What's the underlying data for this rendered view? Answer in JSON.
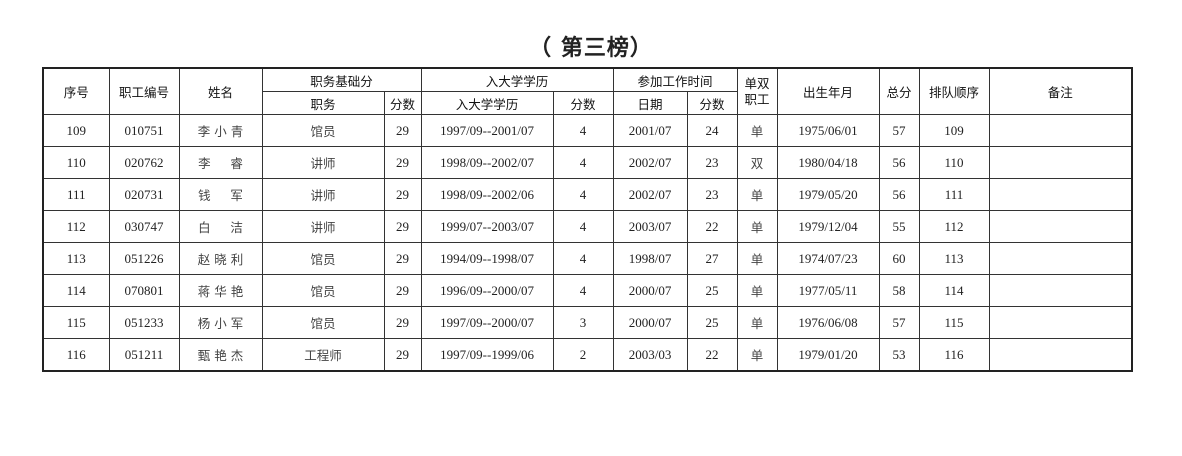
{
  "title": "（ 第三榜）",
  "headers": {
    "seq": "序号",
    "staff_id": "职工编号",
    "name": "姓名",
    "position_group": "职务基础分",
    "position": "职务",
    "position_score": "分数",
    "edu_group": "入大学学历",
    "edu": "入大学学历",
    "edu_score": "分数",
    "work_group": "参加工作时间",
    "work_date": "日期",
    "work_score": "分数",
    "dual_1": "单双",
    "dual_2": "职工",
    "birth": "出生年月",
    "total": "总分",
    "rank": "排队顺序",
    "remark": "备注"
  },
  "rows": [
    {
      "seq": "109",
      "id": "010751",
      "name": "李 小 青",
      "position": "馆员",
      "pscore": "29",
      "edu": "1997/09--2001/07",
      "escore": "4",
      "wdate": "2001/07",
      "wscore": "24",
      "dual": "单",
      "birth": "1975/06/01",
      "total": "57",
      "rank": "109",
      "remark": ""
    },
    {
      "seq": "110",
      "id": "020762",
      "name": "李     睿",
      "position": "讲师",
      "pscore": "29",
      "edu": "1998/09--2002/07",
      "escore": "4",
      "wdate": "2002/07",
      "wscore": "23",
      "dual": "双",
      "birth": "1980/04/18",
      "total": "56",
      "rank": "110",
      "remark": ""
    },
    {
      "seq": "111",
      "id": "020731",
      "name": "钱     军",
      "position": "讲师",
      "pscore": "29",
      "edu": "1998/09--2002/06",
      "escore": "4",
      "wdate": "2002/07",
      "wscore": "23",
      "dual": "单",
      "birth": "1979/05/20",
      "total": "56",
      "rank": "111",
      "remark": ""
    },
    {
      "seq": "112",
      "id": "030747",
      "name": "白     洁",
      "position": "讲师",
      "pscore": "29",
      "edu": "1999/07--2003/07",
      "escore": "4",
      "wdate": "2003/07",
      "wscore": "22",
      "dual": "单",
      "birth": "1979/12/04",
      "total": "55",
      "rank": "112",
      "remark": ""
    },
    {
      "seq": "113",
      "id": "051226",
      "name": "赵 晓 利",
      "position": "馆员",
      "pscore": "29",
      "edu": "1994/09--1998/07",
      "escore": "4",
      "wdate": "1998/07",
      "wscore": "27",
      "dual": "单",
      "birth": "1974/07/23",
      "total": "60",
      "rank": "113",
      "remark": ""
    },
    {
      "seq": "114",
      "id": "070801",
      "name": "蒋 华 艳",
      "position": "馆员",
      "pscore": "29",
      "edu": "1996/09--2000/07",
      "escore": "4",
      "wdate": "2000/07",
      "wscore": "25",
      "dual": "单",
      "birth": "1977/05/11",
      "total": "58",
      "rank": "114",
      "remark": ""
    },
    {
      "seq": "115",
      "id": "051233",
      "name": "杨 小 军",
      "position": "馆员",
      "pscore": "29",
      "edu": "1997/09--2000/07",
      "escore": "3",
      "wdate": "2000/07",
      "wscore": "25",
      "dual": "单",
      "birth": "1976/06/08",
      "total": "57",
      "rank": "115",
      "remark": ""
    },
    {
      "seq": "116",
      "id": "051211",
      "name": "甄 艳 杰",
      "position": "工程师",
      "pscore": "29",
      "edu": "1997/09--1999/06",
      "escore": "2",
      "wdate": "2003/03",
      "wscore": "22",
      "dual": "单",
      "birth": "1979/01/20",
      "total": "53",
      "rank": "116",
      "remark": ""
    }
  ]
}
